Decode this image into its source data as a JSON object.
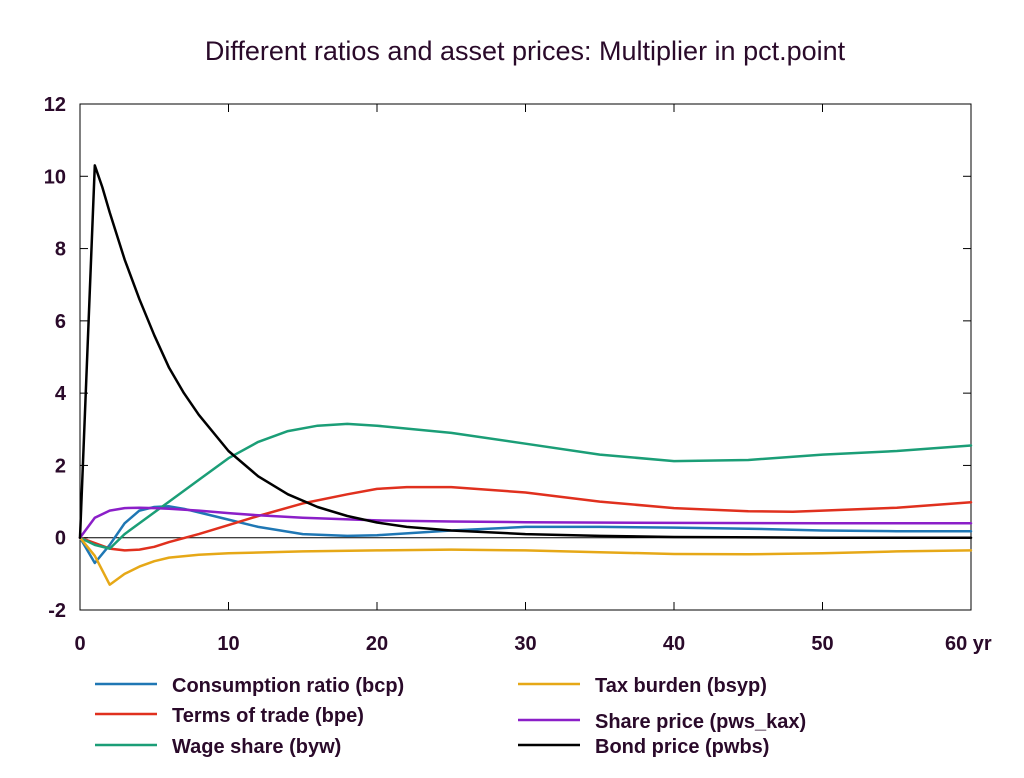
{
  "chart_data": {
    "type": "line",
    "title": "Different ratios and asset prices: Multiplier in pct.point",
    "x_unit_label": "yr",
    "xlim": [
      0,
      60
    ],
    "ylim": [
      -2,
      12
    ],
    "x_ticks": [
      0,
      10,
      20,
      30,
      40,
      50,
      60
    ],
    "x_tick_labels": [
      "0",
      "10",
      "20",
      "30",
      "40",
      "50",
      "60 yr"
    ],
    "y_ticks": [
      -2,
      0,
      2,
      4,
      6,
      8,
      10,
      12
    ],
    "y_tick_labels": [
      "-2",
      "0",
      "2",
      "4",
      "6",
      "8",
      "10",
      "12"
    ],
    "grid": false,
    "zero_line": true,
    "legend_position": "bottom",
    "series": [
      {
        "name": "Consumption ratio (bcp)",
        "color": "#1f77b4",
        "x": [
          0,
          1,
          2,
          3,
          4,
          5,
          6,
          7,
          8,
          10,
          12,
          15,
          18,
          20,
          25,
          30,
          35,
          40,
          45,
          50,
          55,
          60
        ],
        "y": [
          0,
          -0.7,
          -0.2,
          0.4,
          0.75,
          0.85,
          0.87,
          0.8,
          0.7,
          0.5,
          0.3,
          0.1,
          0.05,
          0.07,
          0.2,
          0.3,
          0.3,
          0.28,
          0.25,
          0.2,
          0.18,
          0.18
        ]
      },
      {
        "name": "Terms of trade (bpe)",
        "color": "#e0301e",
        "x": [
          0,
          1,
          2,
          3,
          4,
          5,
          6,
          8,
          10,
          12,
          15,
          18,
          20,
          22,
          25,
          30,
          35,
          40,
          45,
          48,
          50,
          55,
          60
        ],
        "y": [
          0,
          -0.15,
          -0.3,
          -0.35,
          -0.33,
          -0.25,
          -0.12,
          0.1,
          0.35,
          0.6,
          0.95,
          1.2,
          1.35,
          1.4,
          1.4,
          1.25,
          1.0,
          0.82,
          0.73,
          0.72,
          0.75,
          0.83,
          0.98
        ]
      },
      {
        "name": "Wage share (byw)",
        "color": "#1b9e77",
        "x": [
          0,
          1,
          2,
          3,
          4,
          5,
          6,
          8,
          10,
          12,
          14,
          16,
          18,
          20,
          25,
          30,
          35,
          40,
          45,
          50,
          55,
          60
        ],
        "y": [
          0,
          -0.2,
          -0.3,
          0.1,
          0.4,
          0.7,
          1.0,
          1.6,
          2.2,
          2.65,
          2.95,
          3.1,
          3.15,
          3.1,
          2.9,
          2.6,
          2.3,
          2.12,
          2.15,
          2.3,
          2.4,
          2.55
        ]
      },
      {
        "name": "Tax burden (bsyp)",
        "color": "#e6a817",
        "x": [
          0,
          1,
          2,
          3,
          4,
          5,
          6,
          8,
          10,
          15,
          20,
          25,
          30,
          35,
          40,
          45,
          50,
          55,
          60
        ],
        "y": [
          0,
          -0.5,
          -1.3,
          -1.0,
          -0.8,
          -0.65,
          -0.55,
          -0.47,
          -0.43,
          -0.38,
          -0.35,
          -0.33,
          -0.35,
          -0.4,
          -0.45,
          -0.46,
          -0.43,
          -0.38,
          -0.35
        ]
      },
      {
        "name": "Share price (pws_kax)",
        "color": "#8b1fc8",
        "x": [
          0,
          1,
          2,
          3,
          4,
          5,
          6,
          8,
          10,
          12,
          15,
          20,
          25,
          30,
          40,
          50,
          60
        ],
        "y": [
          0,
          0.55,
          0.75,
          0.82,
          0.83,
          0.82,
          0.8,
          0.75,
          0.68,
          0.62,
          0.55,
          0.48,
          0.45,
          0.43,
          0.41,
          0.4,
          0.4
        ]
      },
      {
        "name": "Bond price (pwbs)",
        "color": "#000000",
        "x": [
          0,
          1,
          1.5,
          2,
          3,
          4,
          5,
          6,
          7,
          8,
          10,
          12,
          14,
          16,
          18,
          20,
          22,
          25,
          30,
          35,
          40,
          50,
          60
        ],
        "y": [
          0,
          10.3,
          9.7,
          9.0,
          7.7,
          6.6,
          5.6,
          4.7,
          4.0,
          3.4,
          2.4,
          1.7,
          1.2,
          0.85,
          0.6,
          0.42,
          0.3,
          0.2,
          0.1,
          0.05,
          0.02,
          0.0,
          0.0
        ]
      }
    ]
  }
}
